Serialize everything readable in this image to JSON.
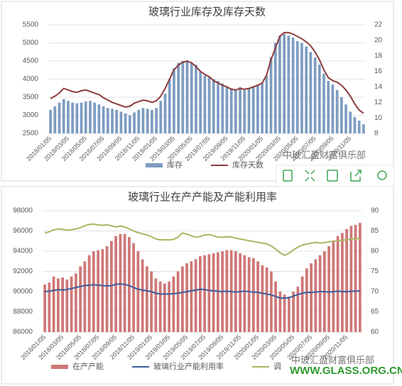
{
  "chart_data": [
    {
      "type": "bar",
      "title": "玻璃行业库存及库存天数",
      "categories": [
        "2018/01/05",
        null,
        null,
        null,
        "2018/03/05",
        null,
        null,
        null,
        "2018/05/05",
        null,
        null,
        null,
        "2018/07/05",
        null,
        null,
        null,
        "2018/09/05",
        null,
        null,
        null,
        "2018/11/05",
        null,
        null,
        null,
        "2019/01/05",
        null,
        null,
        null,
        "2019/03/05",
        null,
        null,
        null,
        "2019/05/05",
        null,
        null,
        null,
        "2019/07/05",
        null,
        null,
        null,
        "2019/09/05",
        null,
        null,
        null,
        "2019/11/05",
        null,
        null,
        null,
        "2020/01/05",
        null,
        null,
        null,
        "2020/03/05",
        null,
        null,
        null,
        "2020/05/05",
        null,
        null,
        null,
        "2020/07/05",
        null,
        null,
        null,
        "2020/09/05",
        null,
        null,
        null,
        "2020/11/05",
        null,
        null,
        null
      ],
      "ylim": [
        2500,
        5500
      ],
      "yticks": [
        2500,
        3000,
        3500,
        4000,
        4500,
        5000,
        5500
      ],
      "y2lim": [
        8,
        22
      ],
      "y2ticks": [
        8,
        10,
        12,
        14,
        16,
        18,
        20,
        22
      ],
      "grid": true,
      "series": [
        {
          "name": "库存",
          "kind": "bar",
          "color": "#7d9cc2",
          "values": [
            3150,
            3250,
            3350,
            3450,
            3400,
            3350,
            3330,
            3350,
            3380,
            3400,
            3350,
            3300,
            3250,
            3200,
            3180,
            3150,
            3100,
            3050,
            3000,
            3080,
            3150,
            3200,
            3180,
            3150,
            3200,
            3400,
            3600,
            4000,
            4300,
            4450,
            4500,
            4520,
            4450,
            4400,
            4200,
            4100,
            4050,
            4000,
            3950,
            3880,
            3800,
            3750,
            3720,
            3780,
            3700,
            3750,
            3800,
            3850,
            3900,
            4100,
            4600,
            5000,
            5200,
            5250,
            5200,
            5150,
            5050,
            5000,
            4900,
            4750,
            4600,
            4400,
            4150,
            3950,
            3850,
            3700,
            3500,
            3300,
            3100,
            2950,
            2850,
            2750
          ]
        },
        {
          "name": "库存天数",
          "kind": "line",
          "axis": "y2",
          "color": "#8e3b3b",
          "values": [
            12.5,
            12.8,
            13.2,
            13.8,
            13.6,
            13.4,
            13.3,
            13.5,
            13.6,
            13.4,
            13.2,
            13.0,
            12.6,
            12.3,
            12.0,
            11.8,
            11.6,
            11.4,
            11.5,
            11.9,
            12.1,
            12.3,
            12.2,
            12.0,
            12.2,
            12.8,
            13.8,
            15.0,
            16.2,
            16.8,
            17.2,
            17.3,
            17.1,
            16.6,
            16.0,
            15.6,
            15.3,
            14.8,
            14.5,
            14.2,
            14.0,
            13.7,
            13.6,
            13.8,
            13.7,
            13.8,
            14.0,
            14.2,
            14.5,
            15.5,
            17.5,
            19.0,
            20.5,
            21.0,
            21.0,
            20.8,
            20.5,
            20.2,
            19.8,
            19.3,
            18.5,
            17.5,
            16.2,
            15.2,
            14.8,
            14.6,
            14.2,
            13.6,
            12.8,
            11.8,
            11.0,
            10.6
          ]
        }
      ]
    },
    {
      "type": "bar",
      "title": "玻璃行业在产产能及产能利用率",
      "categories": [
        "2018/01/05",
        null,
        null,
        null,
        "2018/03/05",
        null,
        null,
        null,
        "2018/05/05",
        null,
        null,
        null,
        "2018/07/05",
        null,
        null,
        null,
        "2018/09/05",
        null,
        null,
        null,
        "2018/11/05",
        null,
        null,
        null,
        "2019/01/05",
        null,
        null,
        null,
        "2019/03/05",
        null,
        null,
        null,
        "2019/05/05",
        null,
        null,
        null,
        "2019/07/05",
        null,
        null,
        null,
        "2019/09/05",
        null,
        null,
        null,
        "2019/11/05",
        null,
        null,
        null,
        "2020/01/05",
        null,
        null,
        null,
        "2020/03/05",
        null,
        null,
        null,
        "2020/05/05",
        null,
        null,
        null,
        "2020/07/05",
        null,
        null,
        null,
        "2020/09/05",
        null,
        null,
        null,
        "2020/11/05",
        null,
        null,
        null
      ],
      "ylim": [
        86000,
        98000
      ],
      "yticks": [
        86000,
        88000,
        90000,
        92000,
        94000,
        96000,
        98000
      ],
      "y2lim": [
        60,
        90
      ],
      "y2ticks": [
        60,
        65,
        70,
        75,
        80,
        85,
        90
      ],
      "grid": true,
      "series": [
        {
          "name": "在产产能",
          "kind": "bar",
          "color": "#cf7777",
          "values": [
            90700,
            90900,
            91500,
            91300,
            91400,
            91200,
            91500,
            91800,
            92500,
            93000,
            93600,
            94000,
            94100,
            94200,
            94500,
            95000,
            95500,
            95700,
            95700,
            95400,
            94800,
            94000,
            93200,
            92500,
            92000,
            91300,
            91000,
            90800,
            91000,
            91500,
            92000,
            92500,
            92800,
            93000,
            93200,
            93500,
            93600,
            93700,
            93800,
            93900,
            94000,
            94100,
            94100,
            94000,
            93800,
            93600,
            93400,
            93300,
            93000,
            92600,
            92400,
            92000,
            91000,
            90000,
            89700,
            89500,
            90000,
            90500,
            91500,
            92300,
            92800,
            93200,
            93600,
            94000,
            94500,
            95000,
            95500,
            95800,
            96200,
            96500,
            96600,
            96800
          ]
        },
        {
          "name": "玻璃行业产能利用率",
          "kind": "line",
          "axis": "y2",
          "color": "#3f5c9c",
          "values": [
            70.0,
            70.1,
            70.3,
            70.5,
            70.4,
            70.5,
            70.8,
            71.0,
            71.3,
            71.5,
            71.6,
            71.7,
            71.6,
            71.5,
            71.4,
            71.5,
            71.8,
            71.9,
            71.8,
            71.5,
            71.0,
            70.6,
            70.4,
            70.2,
            70.0,
            69.6,
            69.4,
            69.4,
            69.4,
            69.5,
            69.6,
            69.8,
            70.0,
            70.2,
            70.4,
            70.6,
            70.5,
            70.3,
            70.2,
            70.1,
            70.0,
            70.1,
            70.0,
            69.9,
            70.0,
            70.1,
            70.0,
            69.9,
            69.8,
            69.6,
            69.4,
            69.2,
            68.8,
            68.4,
            68.4,
            68.5,
            68.9,
            69.3,
            69.6,
            69.8,
            69.8,
            69.9,
            70.0,
            70.0,
            69.9,
            70.0,
            70.1,
            70.0,
            70.0,
            70.1,
            70.1,
            70.2
          ]
        },
        {
          "name": "调",
          "kind": "line",
          "axis": "y2",
          "color": "#a7b761",
          "values": [
            84.5,
            84.8,
            85.3,
            85.5,
            85.4,
            85.2,
            85.3,
            85.5,
            85.8,
            86.3,
            86.6,
            86.7,
            86.5,
            86.4,
            86.5,
            86.3,
            86.0,
            86.2,
            86.0,
            85.5,
            85.0,
            84.6,
            84.3,
            84.0,
            83.6,
            83.0,
            82.8,
            82.8,
            82.8,
            82.9,
            83.5,
            84.5,
            84.2,
            83.8,
            83.5,
            83.6,
            84.0,
            84.1,
            83.8,
            83.5,
            83.4,
            83.6,
            83.5,
            83.2,
            83.0,
            82.8,
            82.6,
            82.4,
            82.2,
            82.0,
            81.8,
            81.3,
            80.5,
            79.6,
            79.0,
            79.5,
            80.3,
            81.0,
            81.5,
            81.8,
            82.0,
            82.2,
            82.0,
            82.1,
            82.3,
            82.5,
            82.6,
            82.7,
            82.8,
            83.0,
            83.1,
            83.2
          ]
        }
      ]
    }
  ],
  "watermark": {
    "club": "中玻汇盈财富俱乐部",
    "club2": "中玻汇盈财富俱乐部",
    "site": "WWW.GLASS.ORG.CN"
  }
}
